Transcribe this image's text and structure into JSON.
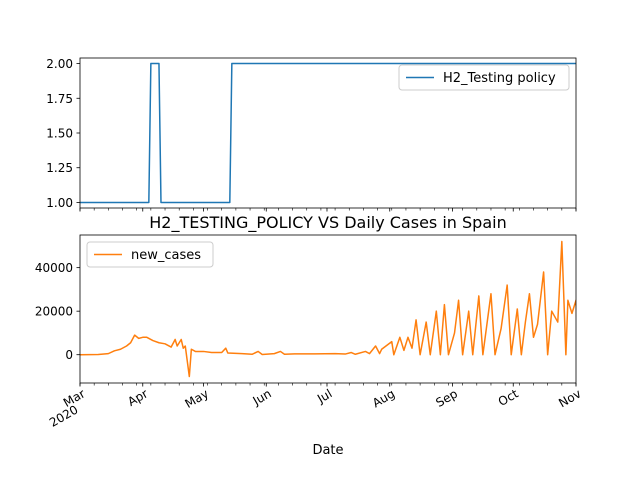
{
  "chart_data": [
    {
      "type": "line",
      "title": "",
      "xlabel": "",
      "ylabel": "",
      "xlim": [
        "2020-03-01",
        "2020-11-01"
      ],
      "ylim": [
        0.96,
        2.04
      ],
      "yticks": [
        "1.00",
        "1.25",
        "1.50",
        "1.75",
        "2.00"
      ],
      "legend": {
        "position": "upper right"
      },
      "series": [
        {
          "name": "H2_Testing policy",
          "color": "#1f77b4",
          "points": [
            [
              "2020-03-01",
              1
            ],
            [
              "2020-04-04",
              1
            ],
            [
              "2020-04-05",
              2
            ],
            [
              "2020-04-09",
              2
            ],
            [
              "2020-04-10",
              1
            ],
            [
              "2020-05-14",
              1
            ],
            [
              "2020-05-15",
              2
            ],
            [
              "2020-11-01",
              2
            ]
          ]
        }
      ]
    },
    {
      "type": "line",
      "title": "H2_TESTING_POLICY VS Daily Cases in Spain",
      "xlabel": "Date",
      "ylabel": "",
      "xlim": [
        "2020-03-01",
        "2020-11-01"
      ],
      "ylim": [
        -13000,
        55000
      ],
      "yticks": [
        "0",
        "20000",
        "40000"
      ],
      "xticks": [
        {
          "date": "2020-03-01",
          "label": "Mar",
          "sublabel": "2020"
        },
        {
          "date": "2020-04-01",
          "label": "Apr"
        },
        {
          "date": "2020-05-01",
          "label": "May"
        },
        {
          "date": "2020-06-01",
          "label": "Jun"
        },
        {
          "date": "2020-07-01",
          "label": "Jul"
        },
        {
          "date": "2020-08-01",
          "label": "Aug"
        },
        {
          "date": "2020-09-01",
          "label": "Sep"
        },
        {
          "date": "2020-10-01",
          "label": "Oct"
        },
        {
          "date": "2020-11-01",
          "label": "Nov"
        }
      ],
      "legend": {
        "position": "upper left"
      },
      "series": [
        {
          "name": "new_cases",
          "color": "#ff7f0e",
          "points": [
            [
              "2020-03-01",
              0
            ],
            [
              "2020-03-10",
              100
            ],
            [
              "2020-03-15",
              500
            ],
            [
              "2020-03-18",
              1800
            ],
            [
              "2020-03-21",
              2500
            ],
            [
              "2020-03-24",
              4000
            ],
            [
              "2020-03-26",
              5500
            ],
            [
              "2020-03-28",
              9000
            ],
            [
              "2020-03-30",
              7500
            ],
            [
              "2020-04-01",
              8000
            ],
            [
              "2020-04-03",
              8000
            ],
            [
              "2020-04-06",
              6500
            ],
            [
              "2020-04-09",
              5500
            ],
            [
              "2020-04-12",
              5000
            ],
            [
              "2020-04-15",
              3500
            ],
            [
              "2020-04-17",
              7000
            ],
            [
              "2020-04-18",
              4000
            ],
            [
              "2020-04-20",
              7000
            ],
            [
              "2020-04-21",
              3000
            ],
            [
              "2020-04-22",
              4000
            ],
            [
              "2020-04-24",
              -10000
            ],
            [
              "2020-04-25",
              2500
            ],
            [
              "2020-04-27",
              1500
            ],
            [
              "2020-05-01",
              1500
            ],
            [
              "2020-05-05",
              1000
            ],
            [
              "2020-05-10",
              1000
            ],
            [
              "2020-05-12",
              3000
            ],
            [
              "2020-05-13",
              800
            ],
            [
              "2020-05-20",
              500
            ],
            [
              "2020-05-25",
              200
            ],
            [
              "2020-05-28",
              1500
            ],
            [
              "2020-05-30",
              100
            ],
            [
              "2020-06-05",
              500
            ],
            [
              "2020-06-08",
              1500
            ],
            [
              "2020-06-10",
              200
            ],
            [
              "2020-06-15",
              400
            ],
            [
              "2020-06-25",
              400
            ],
            [
              "2020-07-05",
              500
            ],
            [
              "2020-07-10",
              300
            ],
            [
              "2020-07-13",
              1000
            ],
            [
              "2020-07-15",
              200
            ],
            [
              "2020-07-20",
              1500
            ],
            [
              "2020-07-22",
              500
            ],
            [
              "2020-07-25",
              4000
            ],
            [
              "2020-07-27",
              500
            ],
            [
              "2020-07-28",
              2500
            ],
            [
              "2020-08-02",
              6000
            ],
            [
              "2020-08-03",
              0
            ],
            [
              "2020-08-06",
              8000
            ],
            [
              "2020-08-08",
              2000
            ],
            [
              "2020-08-10",
              8000
            ],
            [
              "2020-08-12",
              3000
            ],
            [
              "2020-08-14",
              16000
            ],
            [
              "2020-08-16",
              0
            ],
            [
              "2020-08-19",
              15000
            ],
            [
              "2020-08-21",
              0
            ],
            [
              "2020-08-24",
              20000
            ],
            [
              "2020-08-26",
              0
            ],
            [
              "2020-08-28",
              23000
            ],
            [
              "2020-08-30",
              0
            ],
            [
              "2020-09-02",
              10000
            ],
            [
              "2020-09-04",
              25000
            ],
            [
              "2020-09-06",
              0
            ],
            [
              "2020-09-09",
              20000
            ],
            [
              "2020-09-11",
              0
            ],
            [
              "2020-09-14",
              27000
            ],
            [
              "2020-09-16",
              0
            ],
            [
              "2020-09-18",
              14000
            ],
            [
              "2020-09-20",
              28000
            ],
            [
              "2020-09-22",
              0
            ],
            [
              "2020-09-25",
              12000
            ],
            [
              "2020-09-28",
              32000
            ],
            [
              "2020-09-30",
              0
            ],
            [
              "2020-10-03",
              21000
            ],
            [
              "2020-10-05",
              0
            ],
            [
              "2020-10-07",
              15000
            ],
            [
              "2020-10-09",
              28000
            ],
            [
              "2020-10-11",
              8000
            ],
            [
              "2020-10-13",
              14000
            ],
            [
              "2020-10-16",
              38000
            ],
            [
              "2020-10-18",
              0
            ],
            [
              "2020-10-20",
              20000
            ],
            [
              "2020-10-23",
              15000
            ],
            [
              "2020-10-25",
              52000
            ],
            [
              "2020-10-27",
              0
            ],
            [
              "2020-10-28",
              25000
            ],
            [
              "2020-10-30",
              19000
            ],
            [
              "2020-11-01",
              25000
            ],
            [
              "2020-11-02",
              0
            ]
          ]
        }
      ]
    }
  ]
}
